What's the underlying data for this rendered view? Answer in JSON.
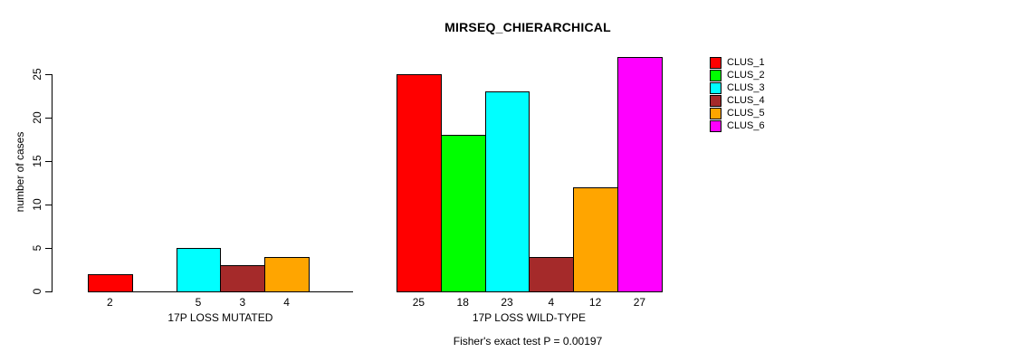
{
  "chart_data": {
    "type": "bar",
    "title": "MIRSEQ_CHIERARCHICAL",
    "xlabel": "",
    "ylabel": "number of cases",
    "annotation": "Fisher's exact test P = 0.00197",
    "ylim": [
      0,
      27
    ],
    "yticks": [
      0,
      5,
      10,
      15,
      20,
      25
    ],
    "grid": false,
    "legend_position": "top-right",
    "bar_value_labels": "shown below axis for non-zero bars only",
    "categories": [
      "17P LOSS MUTATED",
      "17P LOSS WILD-TYPE"
    ],
    "series": [
      {
        "name": "CLUS_1",
        "color": "#FF0000",
        "values": [
          2,
          25
        ]
      },
      {
        "name": "CLUS_2",
        "color": "#00FF00",
        "values": [
          0,
          18
        ]
      },
      {
        "name": "CLUS_3",
        "color": "#00FFFF",
        "values": [
          5,
          23
        ]
      },
      {
        "name": "CLUS_4",
        "color": "#A52A2A",
        "values": [
          3,
          4
        ]
      },
      {
        "name": "CLUS_5",
        "color": "#FFA500",
        "values": [
          4,
          12
        ]
      },
      {
        "name": "CLUS_6",
        "color": "#FF00FF",
        "values": [
          0,
          27
        ]
      }
    ]
  }
}
